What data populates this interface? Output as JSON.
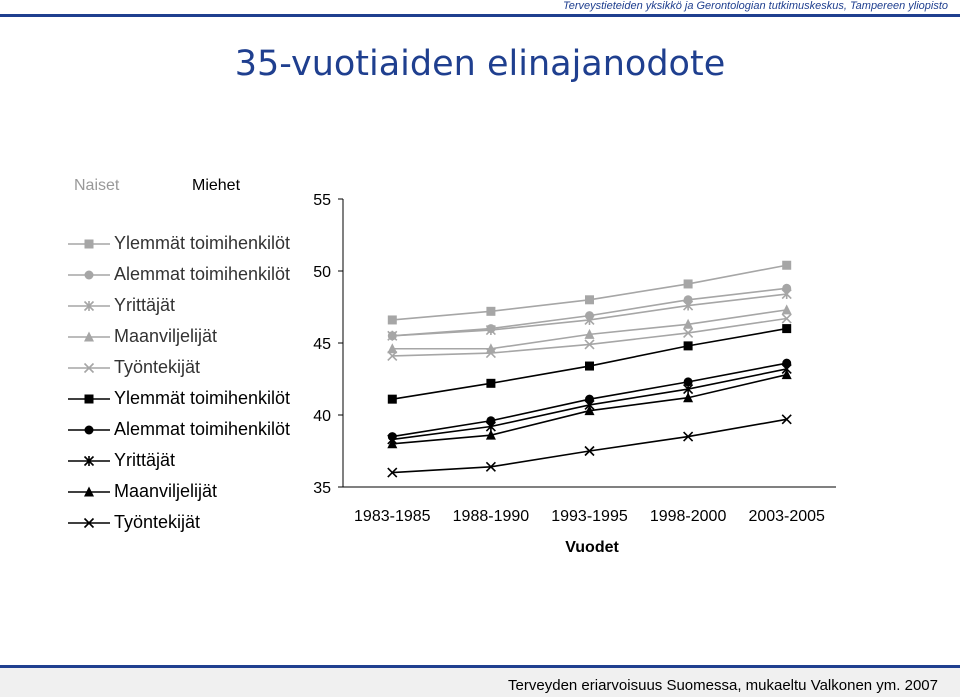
{
  "header": {
    "note": "Terveystieteiden yksikkö ja Gerontologian tutkimuskeskus, Tampereen yliopisto"
  },
  "title": "35-vuotiaiden elinajanodote",
  "columns": {
    "women": "Naiset",
    "men": "Miehet"
  },
  "footer": "Terveyden eriarvoisuus Suomessa, mukaeltu Valkonen ym. 2007",
  "colors": {
    "brand": "#1f3f8f",
    "women_series": "#a6a6a6",
    "men_series": "#000000"
  },
  "chart_data": {
    "type": "line",
    "categories": [
      "1983-1985",
      "1988-1990",
      "1993-1995",
      "1998-2000",
      "2003-2005"
    ],
    "xlabel": "Vuodet",
    "ylabel": "",
    "ylim": [
      35,
      55
    ],
    "yticks": [
      35,
      40,
      45,
      50,
      55
    ],
    "series": [
      {
        "name": "Ylemmät toimihenkilöt",
        "group": "Naiset",
        "marker": "square",
        "values": [
          46.6,
          47.2,
          48.0,
          49.1,
          50.4
        ]
      },
      {
        "name": "Alemmat toimihenkilöt",
        "group": "Naiset",
        "marker": "circle",
        "values": [
          45.5,
          46.0,
          46.9,
          48.0,
          48.8
        ]
      },
      {
        "name": "Yrittäjät",
        "group": "Naiset",
        "marker": "asterisk",
        "values": [
          45.5,
          45.9,
          46.6,
          47.6,
          48.4
        ]
      },
      {
        "name": "Maanviljelijät",
        "group": "Naiset",
        "marker": "triangle",
        "values": [
          44.6,
          44.6,
          45.6,
          46.3,
          47.3
        ]
      },
      {
        "name": "Työntekijät",
        "group": "Naiset",
        "marker": "x",
        "values": [
          44.1,
          44.3,
          44.9,
          45.7,
          46.7
        ]
      },
      {
        "name": "Ylemmät toimihenkilöt",
        "group": "Miehet",
        "marker": "square",
        "values": [
          41.1,
          42.2,
          43.4,
          44.8,
          46.0
        ]
      },
      {
        "name": "Alemmat toimihenkilöt",
        "group": "Miehet",
        "marker": "circle",
        "values": [
          38.5,
          39.6,
          41.1,
          42.3,
          43.6
        ]
      },
      {
        "name": "Yrittäjät",
        "group": "Miehet",
        "marker": "asterisk",
        "values": [
          38.3,
          39.2,
          40.7,
          41.8,
          43.2
        ]
      },
      {
        "name": "Maanviljelijät",
        "group": "Miehet",
        "marker": "triangle",
        "values": [
          38.0,
          38.6,
          40.3,
          41.2,
          42.8
        ]
      },
      {
        "name": "Työntekijät",
        "group": "Miehet",
        "marker": "x",
        "values": [
          36.0,
          36.4,
          37.5,
          38.5,
          39.7
        ]
      }
    ]
  }
}
